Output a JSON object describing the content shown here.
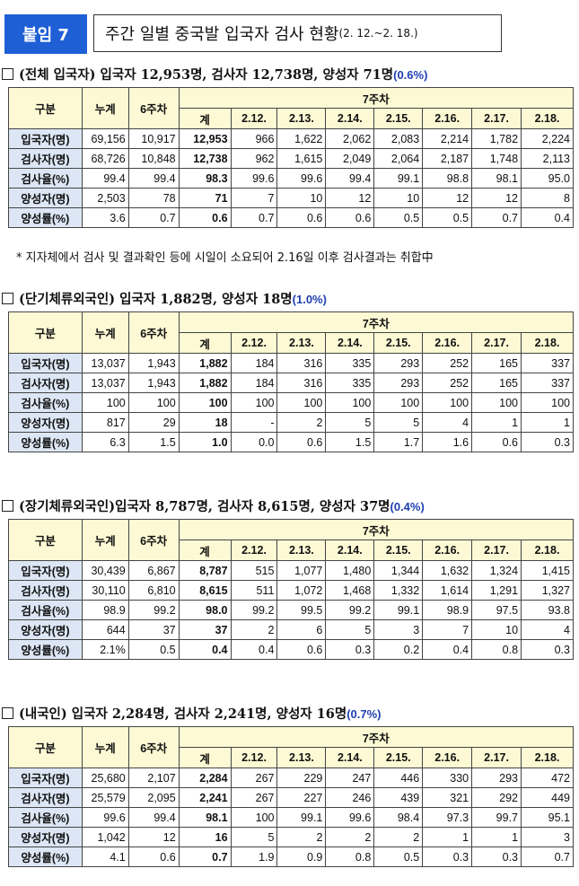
{
  "tag": "붙임 7",
  "title_main": "주간 일별 중국발 입국자 검사 현황",
  "title_period": "(2. 12.~2. 18.)",
  "header_labels": {
    "category": "구분",
    "cumulative": "누계",
    "week6": "6주차",
    "week7": "7주차",
    "total": "계",
    "dates": [
      "2.12.",
      "2.13.",
      "2.14.",
      "2.15.",
      "2.16.",
      "2.17.",
      "2.18."
    ]
  },
  "sections": [
    {
      "heading": "(전체 입국자) 입국자 12,953명, 검사자 12,738명, 양성자 71명",
      "pct": "(0.6%)",
      "rows": [
        {
          "label": "입국자(명)",
          "values": [
            "69,156",
            "10,917",
            "12,953",
            "966",
            "1,622",
            "2,062",
            "2,083",
            "2,214",
            "1,782",
            "2,224"
          ]
        },
        {
          "label": "검사자(명)",
          "values": [
            "68,726",
            "10,848",
            "12,738",
            "962",
            "1,615",
            "2,049",
            "2,064",
            "2,187",
            "1,748",
            "2,113"
          ]
        },
        {
          "label": "검사율(%)",
          "values": [
            "99.4",
            "99.4",
            "98.3",
            "99.6",
            "99.6",
            "99.4",
            "99.1",
            "98.8",
            "98.1",
            "95.0"
          ]
        },
        {
          "label": "양성자(명)",
          "values": [
            "2,503",
            "78",
            "71",
            "7",
            "10",
            "12",
            "10",
            "12",
            "12",
            "8"
          ]
        },
        {
          "label": "양성률(%)",
          "values": [
            "3.6",
            "0.7",
            "0.6",
            "0.7",
            "0.6",
            "0.6",
            "0.5",
            "0.5",
            "0.7",
            "0.4"
          ]
        }
      ]
    },
    {
      "heading": "(단기체류외국인) 입국자 1,882명, 양성자 18명",
      "pct": "(1.0%)",
      "rows": [
        {
          "label": "입국자(명)",
          "values": [
            "13,037",
            "1,943",
            "1,882",
            "184",
            "316",
            "335",
            "293",
            "252",
            "165",
            "337"
          ]
        },
        {
          "label": "검사자(명)",
          "values": [
            "13,037",
            "1,943",
            "1,882",
            "184",
            "316",
            "335",
            "293",
            "252",
            "165",
            "337"
          ]
        },
        {
          "label": "검사율(%)",
          "values": [
            "100",
            "100",
            "100",
            "100",
            "100",
            "100",
            "100",
            "100",
            "100",
            "100"
          ]
        },
        {
          "label": "양성자(명)",
          "values": [
            "817",
            "29",
            "18",
            "-",
            "2",
            "5",
            "5",
            "4",
            "1",
            "1"
          ]
        },
        {
          "label": "양성률(%)",
          "values": [
            "6.3",
            "1.5",
            "1.0",
            "0.0",
            "0.6",
            "1.5",
            "1.7",
            "1.6",
            "0.6",
            "0.3"
          ]
        }
      ]
    },
    {
      "heading": "(장기체류외국인)입국자 8,787명, 검사자 8,615명, 양성자 37명",
      "pct": "(0.4%)",
      "rows": [
        {
          "label": "입국자(명)",
          "values": [
            "30,439",
            "6,867",
            "8,787",
            "515",
            "1,077",
            "1,480",
            "1,344",
            "1,632",
            "1,324",
            "1,415"
          ]
        },
        {
          "label": "검사자(명)",
          "values": [
            "30,110",
            "6,810",
            "8,615",
            "511",
            "1,072",
            "1,468",
            "1,332",
            "1,614",
            "1,291",
            "1,327"
          ]
        },
        {
          "label": "검사율(%)",
          "values": [
            "98.9",
            "99.2",
            "98.0",
            "99.2",
            "99.5",
            "99.2",
            "99.1",
            "98.9",
            "97.5",
            "93.8"
          ]
        },
        {
          "label": "양성자(명)",
          "values": [
            "644",
            "37",
            "37",
            "2",
            "6",
            "5",
            "3",
            "7",
            "10",
            "4"
          ]
        },
        {
          "label": "양성률(%)",
          "values": [
            "2.1%",
            "0.5",
            "0.4",
            "0.4",
            "0.6",
            "0.3",
            "0.2",
            "0.4",
            "0.8",
            "0.3"
          ]
        }
      ]
    },
    {
      "heading": "(내국인) 입국자 2,284명, 검사자 2,241명, 양성자 16명",
      "pct": "(0.7%)",
      "rows": [
        {
          "label": "입국자(명)",
          "values": [
            "25,680",
            "2,107",
            "2,284",
            "267",
            "229",
            "247",
            "446",
            "330",
            "293",
            "472"
          ]
        },
        {
          "label": "검사자(명)",
          "values": [
            "25,579",
            "2,095",
            "2,241",
            "267",
            "227",
            "246",
            "439",
            "321",
            "292",
            "449"
          ]
        },
        {
          "label": "검사율(%)",
          "values": [
            "99.6",
            "99.4",
            "98.1",
            "100",
            "99.1",
            "99.6",
            "98.4",
            "97.3",
            "99.7",
            "95.1"
          ]
        },
        {
          "label": "양성자(명)",
          "values": [
            "1,042",
            "12",
            "16",
            "5",
            "2",
            "2",
            "2",
            "1",
            "1",
            "3"
          ]
        },
        {
          "label": "양성률(%)",
          "values": [
            "4.1",
            "0.6",
            "0.7",
            "1.9",
            "0.9",
            "0.8",
            "0.5",
            "0.3",
            "0.3",
            "0.7"
          ]
        }
      ]
    }
  ],
  "note": "* 지자체에서 검사 및 결과확인 등에 시일이 소요되어 2.16일 이후 검사결과는 취합中"
}
